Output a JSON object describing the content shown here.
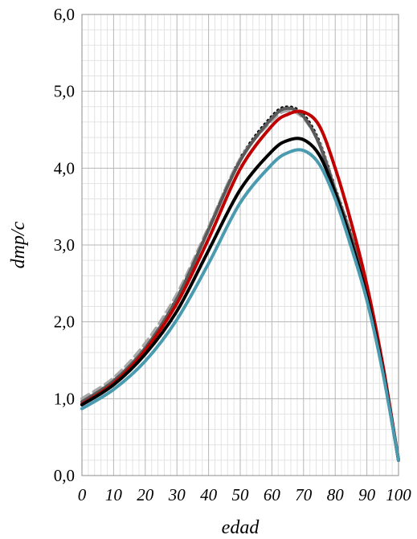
{
  "chart_data": {
    "type": "line",
    "title": "",
    "xlabel": "edad",
    "ylabel": "dmp/c",
    "xlim": [
      0,
      100
    ],
    "ylim": [
      0,
      6
    ],
    "x_ticks": [
      0,
      10,
      20,
      30,
      40,
      50,
      60,
      70,
      80,
      90,
      100
    ],
    "x_tick_labels": [
      "0",
      "10",
      "20",
      "30",
      "40",
      "50",
      "60",
      "70",
      "80",
      "90",
      "100"
    ],
    "y_ticks": [
      0,
      1,
      2,
      3,
      4,
      5,
      6
    ],
    "y_tick_labels": [
      "0,0",
      "1,0",
      "2,0",
      "3,0",
      "4,0",
      "5,0",
      "6,0"
    ],
    "grid": true,
    "legend": "none",
    "x": [
      0,
      10,
      20,
      30,
      40,
      50,
      60,
      65,
      70,
      75,
      80,
      85,
      90,
      95,
      100
    ],
    "series": [
      {
        "color": "#000000",
        "style": "dotted",
        "values": [
          0.97,
          1.24,
          1.67,
          2.32,
          3.22,
          4.13,
          4.68,
          4.8,
          4.7,
          4.35,
          3.75,
          3.15,
          2.4,
          1.4,
          0.2
        ]
      },
      {
        "color": "#a8a8a8",
        "style": "dashed",
        "values": [
          1.0,
          1.27,
          1.72,
          2.36,
          3.23,
          4.12,
          4.62,
          4.75,
          4.65,
          4.32,
          3.73,
          3.13,
          2.38,
          1.38,
          0.2
        ]
      },
      {
        "color": "#5a5a5a",
        "style": "solid",
        "values": [
          0.96,
          1.23,
          1.66,
          2.3,
          3.2,
          4.1,
          4.65,
          4.78,
          4.67,
          4.31,
          3.71,
          3.11,
          2.37,
          1.38,
          0.2
        ]
      },
      {
        "color": "#c00000",
        "style": "solid",
        "values": [
          0.93,
          1.2,
          1.63,
          2.24,
          3.08,
          3.99,
          4.55,
          4.7,
          4.73,
          4.55,
          4.0,
          3.3,
          2.48,
          1.45,
          0.2
        ]
      },
      {
        "color": "#000000",
        "style": "solid",
        "values": [
          0.92,
          1.18,
          1.58,
          2.14,
          2.93,
          3.72,
          4.22,
          4.36,
          4.37,
          4.17,
          3.68,
          3.05,
          2.33,
          1.38,
          0.2
        ]
      },
      {
        "color": "#4a9bb0",
        "style": "solid",
        "values": [
          0.87,
          1.12,
          1.49,
          2.03,
          2.76,
          3.55,
          4.05,
          4.2,
          4.23,
          4.05,
          3.6,
          2.98,
          2.28,
          1.35,
          0.2
        ]
      }
    ]
  }
}
